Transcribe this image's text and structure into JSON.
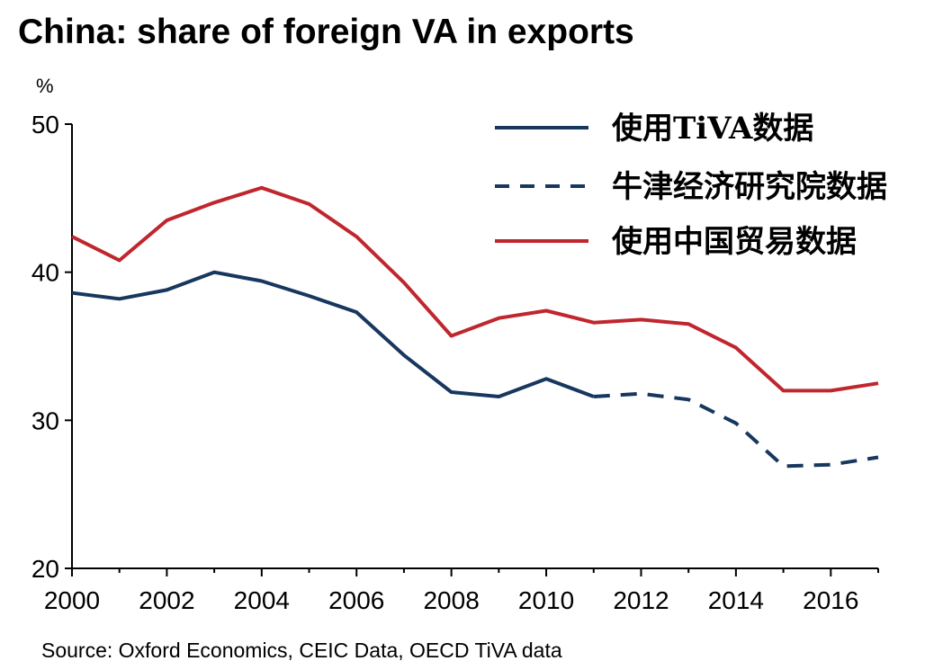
{
  "chart_data": {
    "type": "line",
    "title": "China: share of foreign VA in exports",
    "ylabel": "%",
    "xlabel": "",
    "source": "Source: Oxford Economics, CEIC Data, OECD TiVA data",
    "xlim": [
      2000,
      2017
    ],
    "ylim": [
      20,
      50
    ],
    "x_ticks": [
      "2000",
      "2002",
      "2004",
      "2006",
      "2008",
      "2010",
      "2012",
      "2014",
      "2016"
    ],
    "y_ticks": [
      "20",
      "30",
      "40",
      "50"
    ],
    "legend_position": "top-right",
    "grid": false,
    "series": [
      {
        "name": "使用TiVA数据",
        "color": "#17375e",
        "style": "solid",
        "x": [
          2000,
          2001,
          2002,
          2003,
          2004,
          2005,
          2006,
          2007,
          2008,
          2009,
          2010,
          2011
        ],
        "values": [
          38.6,
          38.2,
          38.8,
          40.0,
          39.4,
          38.4,
          37.3,
          34.4,
          31.9,
          31.6,
          32.8,
          31.6
        ]
      },
      {
        "name": "牛津经济研究院数据",
        "color": "#17375e",
        "style": "dashed",
        "x": [
          2011,
          2012,
          2013,
          2014,
          2015,
          2016,
          2017
        ],
        "values": [
          31.6,
          31.8,
          31.4,
          29.8,
          26.9,
          27.0,
          27.5
        ]
      },
      {
        "name": "使用中国贸易数据",
        "color": "#c0262d",
        "style": "solid",
        "x": [
          2000,
          2001,
          2002,
          2003,
          2004,
          2005,
          2006,
          2007,
          2008,
          2009,
          2010,
          2011,
          2012,
          2013,
          2014,
          2015,
          2016,
          2017
        ],
        "values": [
          42.4,
          40.8,
          43.5,
          44.7,
          45.7,
          44.6,
          42.4,
          39.3,
          35.7,
          36.9,
          37.4,
          36.6,
          36.8,
          36.5,
          34.9,
          32.0,
          32.0,
          32.5
        ]
      }
    ]
  }
}
